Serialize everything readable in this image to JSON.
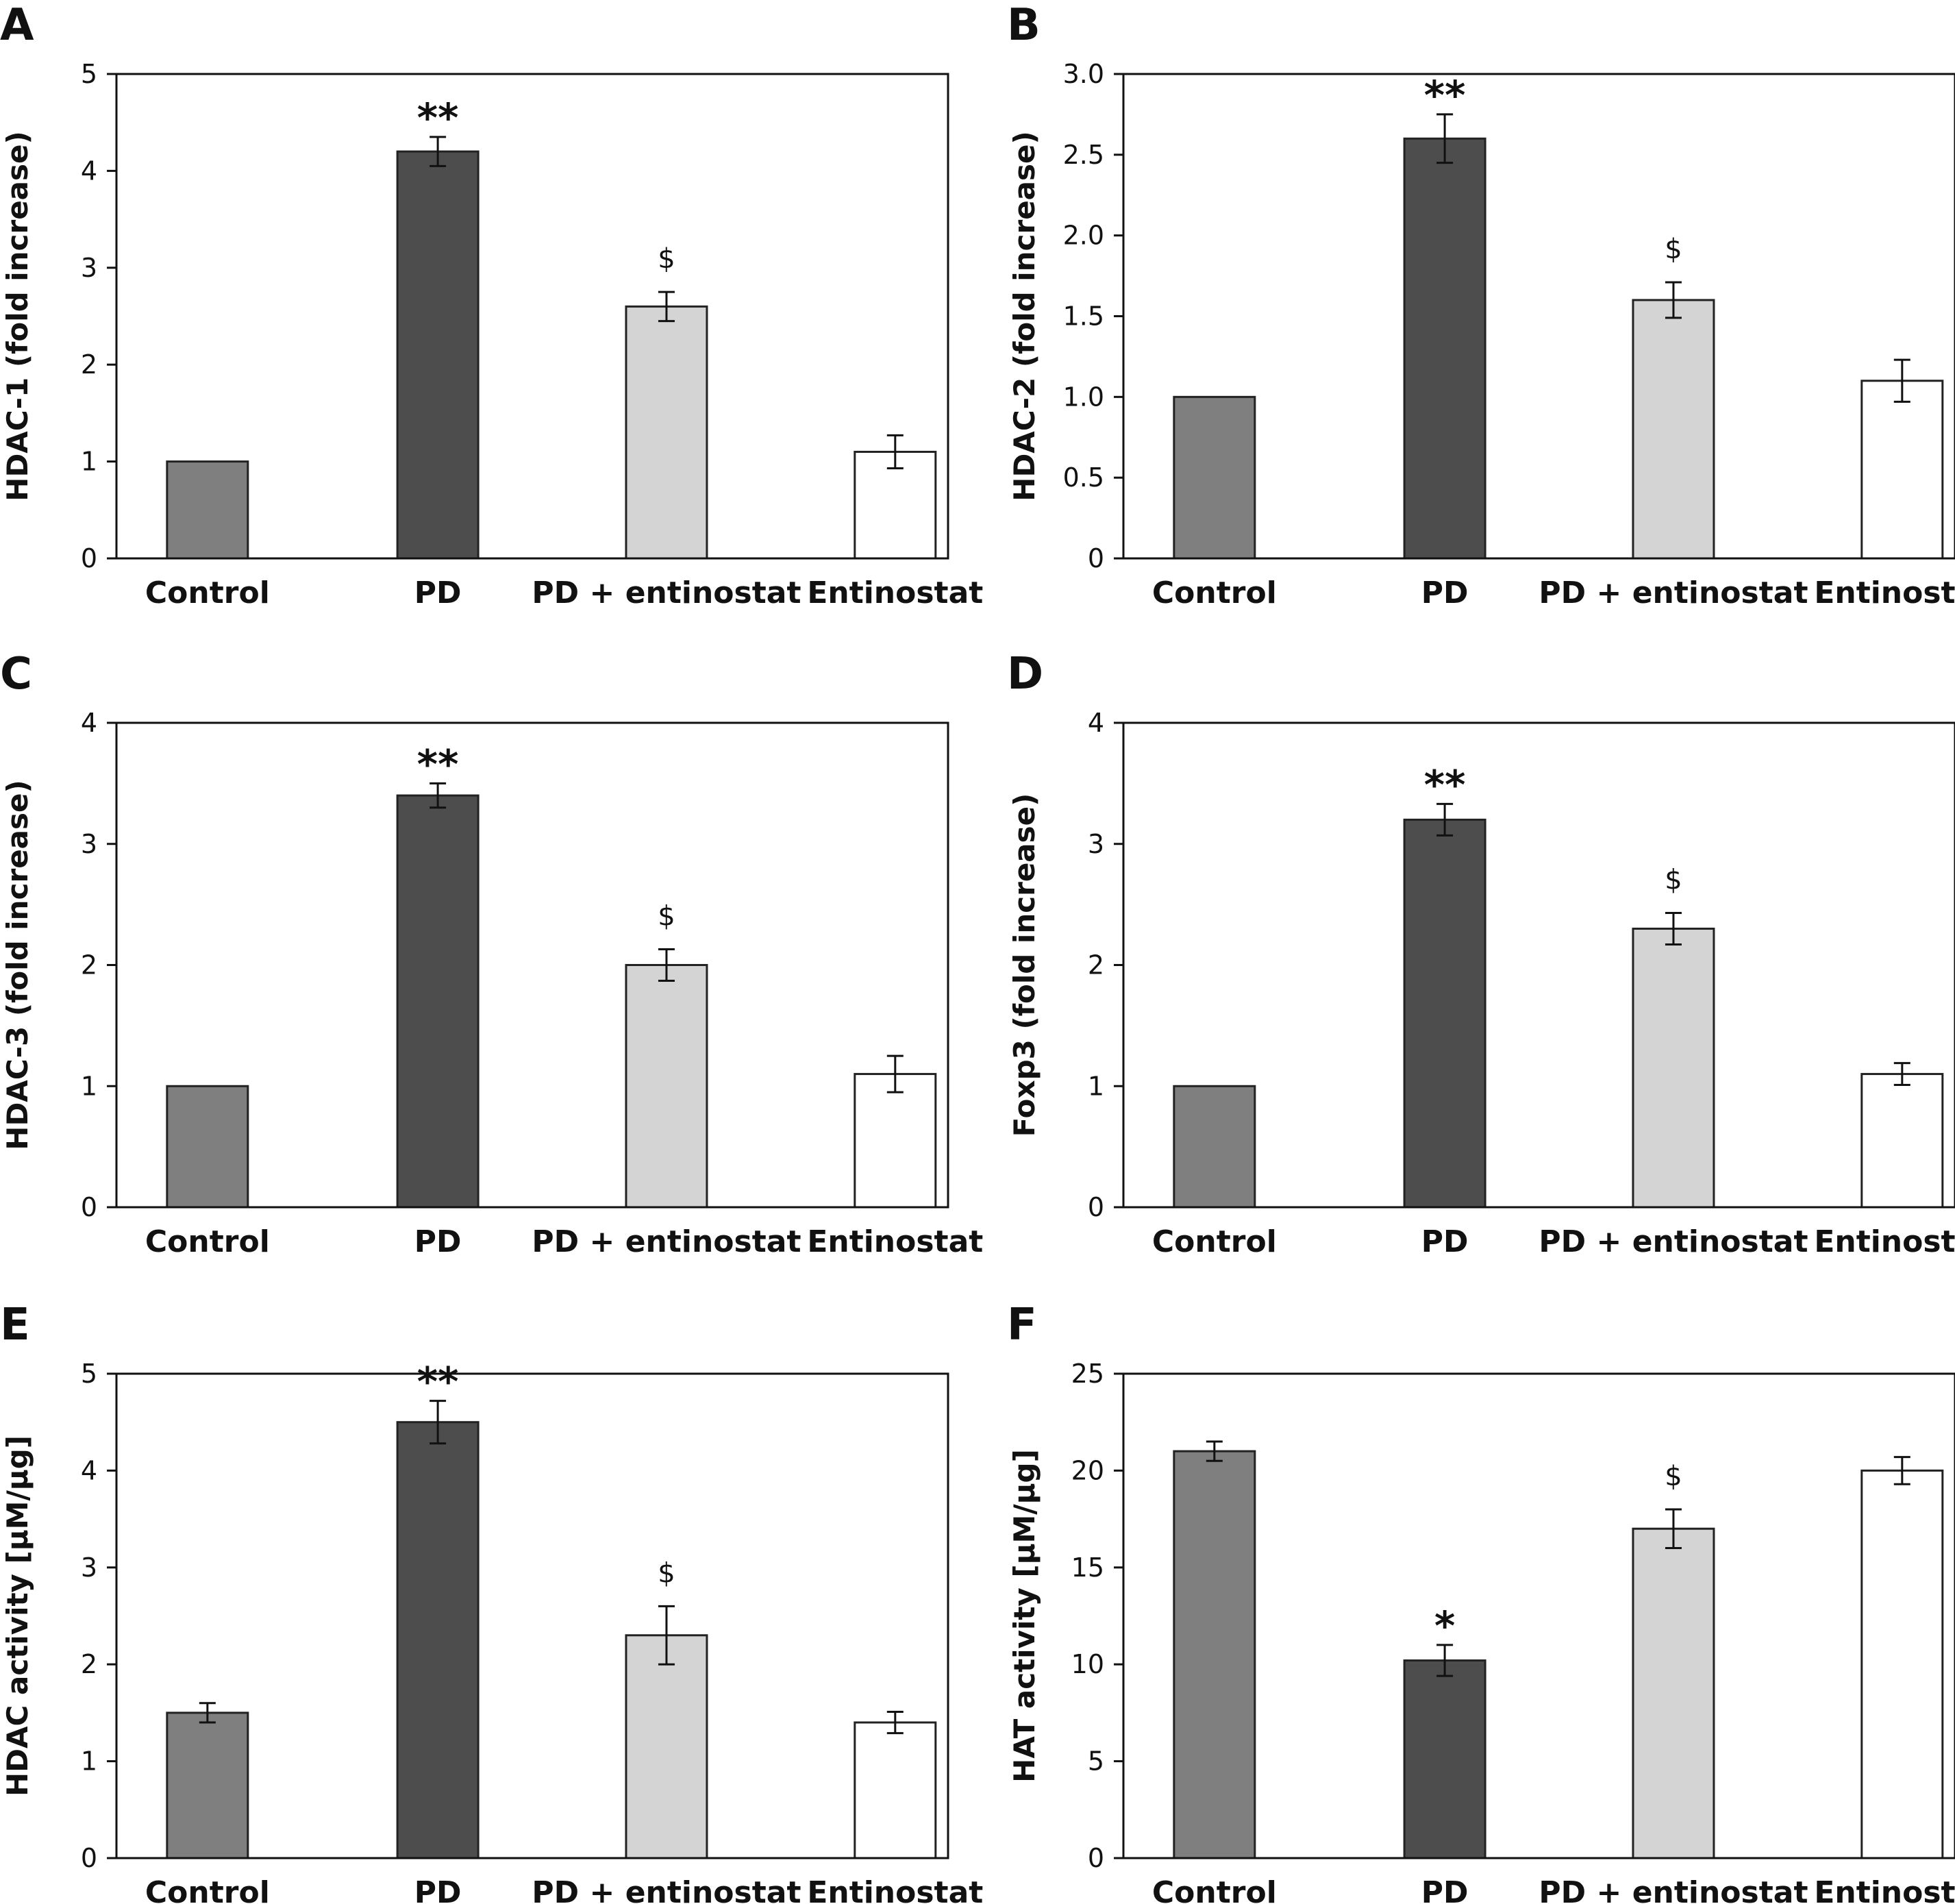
{
  "colors": {
    "Control": "#7f7f7f",
    "PD": "#4d4d4d",
    "PD + entinostat": "#d4d4d4",
    "Entinostat": "#ffffff",
    "stroke": "#222222"
  },
  "chart_data": [
    {
      "panel": "A",
      "type": "bar",
      "categories": [
        "Control",
        "PD",
        "PD + entinostat",
        "Entinostat"
      ],
      "values": [
        1.0,
        4.2,
        2.6,
        1.1
      ],
      "errors": [
        0,
        0.15,
        0.15,
        0.17
      ],
      "annotations": [
        "",
        "**",
        "$",
        ""
      ],
      "ylabel": "HDAC-1 (fold increase)",
      "ylim": [
        0,
        5
      ],
      "yticks": [
        "0",
        "1",
        "2",
        "3",
        "4",
        "5"
      ]
    },
    {
      "panel": "B",
      "type": "bar",
      "categories": [
        "Control",
        "PD",
        "PD + entinostat",
        "Entinostat"
      ],
      "values": [
        1.0,
        2.6,
        1.6,
        1.1
      ],
      "errors": [
        0,
        0.15,
        0.11,
        0.13
      ],
      "annotations": [
        "",
        "**",
        "$",
        ""
      ],
      "ylabel": "HDAC-2 (fold increase)",
      "ylim": [
        0,
        3
      ],
      "yticks": [
        "0",
        "0.5",
        "1.0",
        "1.5",
        "2.0",
        "2.5",
        "3.0"
      ]
    },
    {
      "panel": "C",
      "type": "bar",
      "categories": [
        "Control",
        "PD",
        "PD + entinostat",
        "Entinostat"
      ],
      "values": [
        1.0,
        3.4,
        2.0,
        1.1
      ],
      "errors": [
        0,
        0.1,
        0.13,
        0.15
      ],
      "annotations": [
        "",
        "**",
        "$",
        ""
      ],
      "ylabel": "HDAC-3 (fold increase)",
      "ylim": [
        0,
        4
      ],
      "yticks": [
        "0",
        "1",
        "2",
        "3",
        "4"
      ]
    },
    {
      "panel": "D",
      "type": "bar",
      "categories": [
        "Control",
        "PD",
        "PD + entinostat",
        "Entinostat"
      ],
      "values": [
        1.0,
        3.2,
        2.3,
        1.1
      ],
      "errors": [
        0,
        0.13,
        0.13,
        0.09
      ],
      "annotations": [
        "",
        "**",
        "$",
        ""
      ],
      "ylabel": "Foxp3 (fold increase)",
      "ylim": [
        0,
        4
      ],
      "yticks": [
        "0",
        "1",
        "2",
        "3",
        "4"
      ]
    },
    {
      "panel": "E",
      "type": "bar",
      "categories": [
        "Control",
        "PD",
        "PD + entinostat",
        "Entinostat"
      ],
      "values": [
        1.5,
        4.5,
        2.3,
        1.4
      ],
      "errors": [
        0.1,
        0.22,
        0.3,
        0.11
      ],
      "annotations": [
        "",
        "**",
        "$",
        ""
      ],
      "ylabel": "HDAC activity [μM/μg]",
      "ylim": [
        0,
        5
      ],
      "yticks": [
        "0",
        "1",
        "2",
        "3",
        "4",
        "5"
      ]
    },
    {
      "panel": "F",
      "type": "bar",
      "categories": [
        "Control",
        "PD",
        "PD + entinostat",
        "Entinostat"
      ],
      "values": [
        21.0,
        10.2,
        17.0,
        20.0
      ],
      "errors": [
        0.5,
        0.8,
        1.0,
        0.7
      ],
      "annotations": [
        "",
        "*",
        "$",
        ""
      ],
      "ylabel": "HAT activity [μM/μg]",
      "ylim": [
        0,
        25
      ],
      "yticks": [
        "0",
        "5",
        "10",
        "15",
        "20",
        "25"
      ]
    }
  ]
}
